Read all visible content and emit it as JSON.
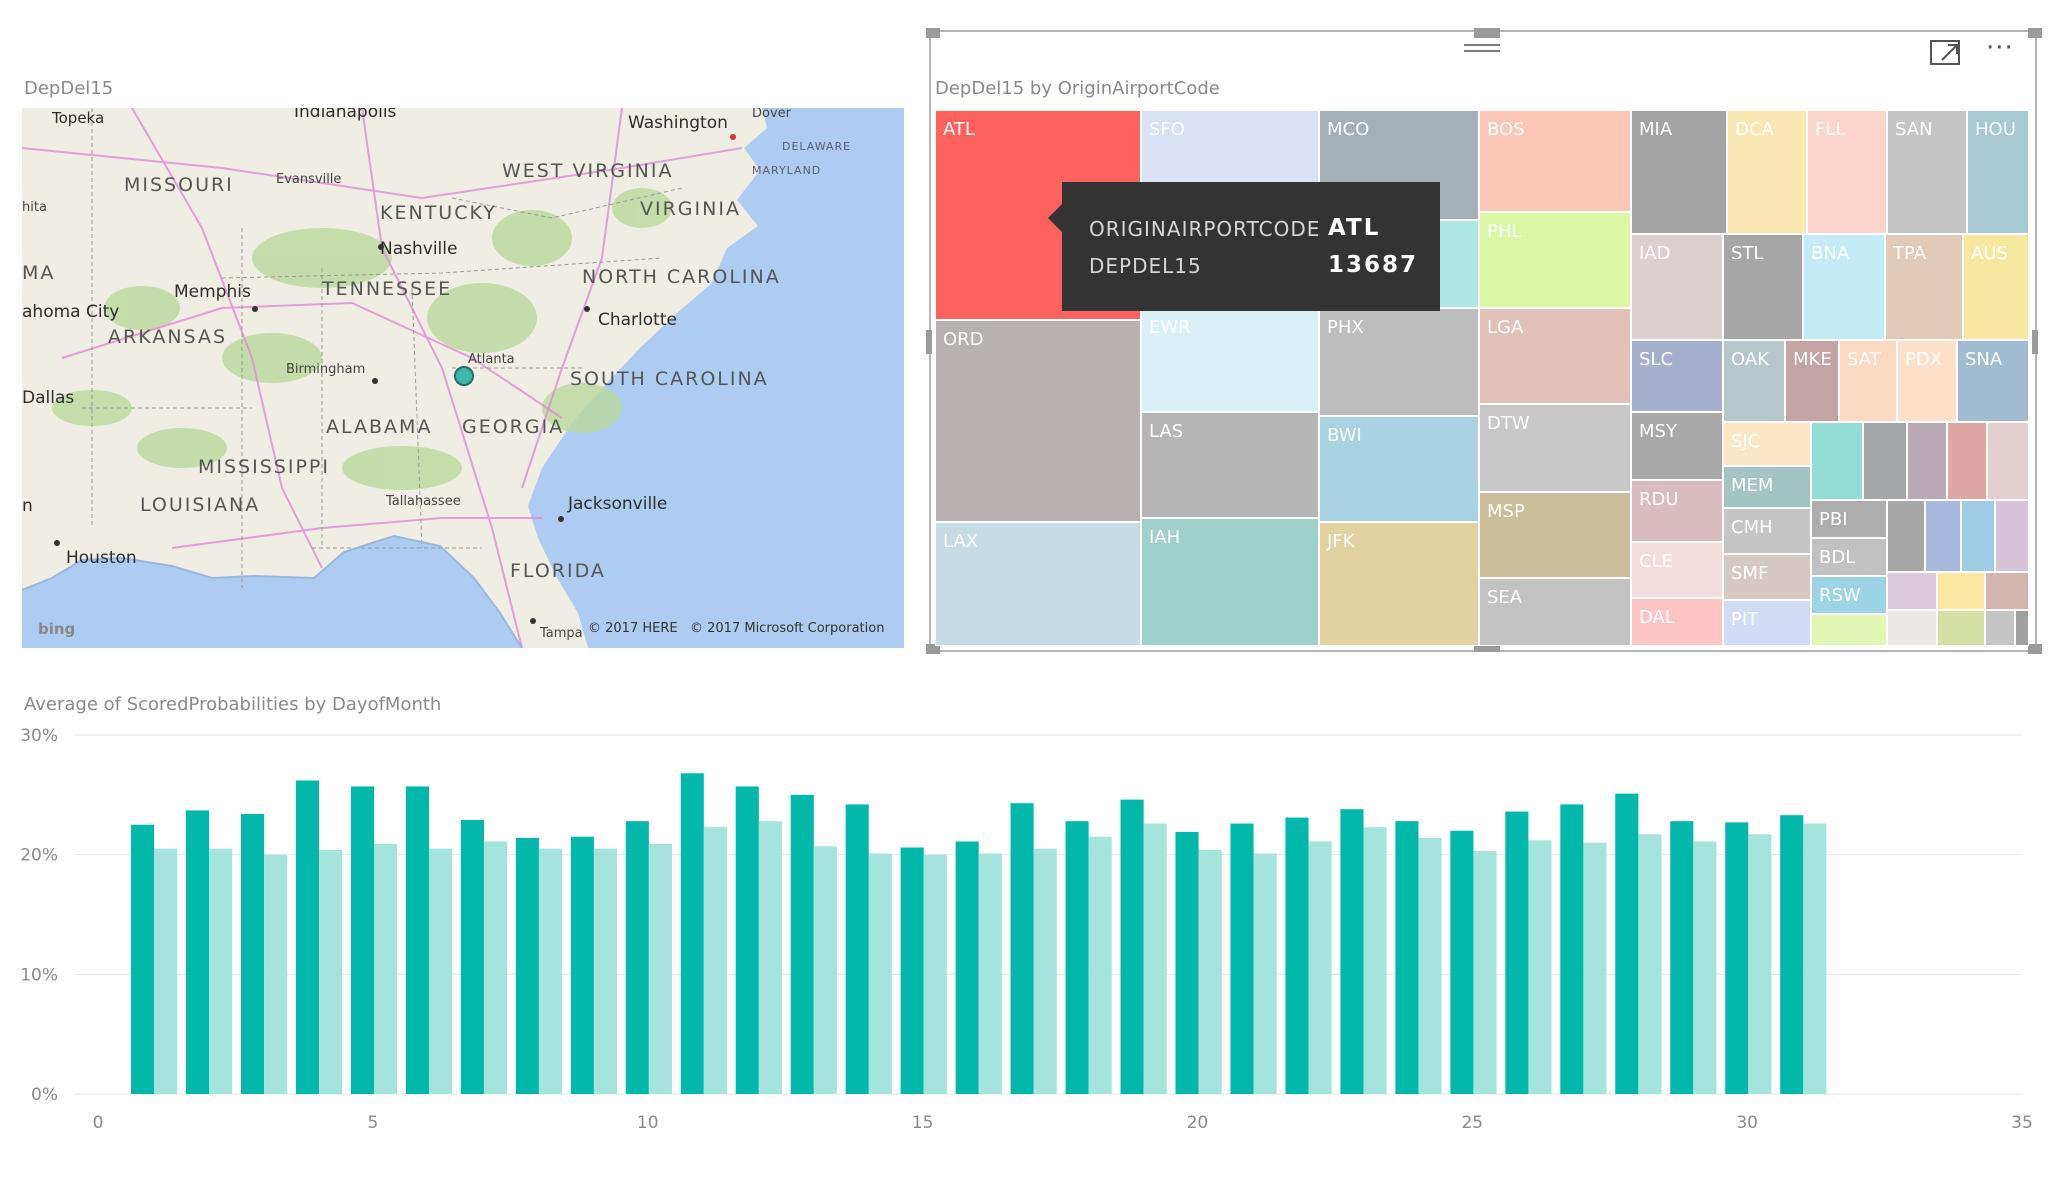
{
  "map_visual": {
    "title": "DepDel15",
    "states": [
      "MISSOURI",
      "KENTUCKY",
      "WEST VIRGINIA",
      "VIRGINIA",
      "TENNESSEE",
      "NORTH CAROLINA",
      "ARKANSAS",
      "SOUTH CAROLINA",
      "ALABAMA",
      "GEORGIA",
      "MISSISSIPPI",
      "LOUISIANA",
      "FLORIDA",
      "MA"
    ],
    "cities": [
      "Topeka",
      "Indianapolis",
      "Washington",
      "Dover",
      "Evansville",
      "Nashville",
      "Memphis",
      "Charlotte",
      "Birmingham",
      "Atlanta",
      "Tallahassee",
      "Jacksonville",
      "Houston",
      "Tampa",
      "ahoma City",
      "Dallas",
      "hita",
      "n"
    ],
    "small_states": [
      "DELAWARE",
      "MARYLAND"
    ],
    "bing_label": "bing",
    "copyright": [
      "© 2017 HERE",
      "© 2017 Microsoft Corporation"
    ],
    "bubble_color": "#3eb8a8"
  },
  "treemap_visual": {
    "title": "DepDel15 by OriginAirportCode",
    "cells": [
      {
        "label": "ATL",
        "color": "#fd625e"
      },
      {
        "label": "ORD",
        "color": "#b8b1b1"
      },
      {
        "label": "LAX",
        "color": "#c6dbe3"
      },
      {
        "label": "SFO",
        "color": "#dbe1f5"
      },
      {
        "label": "",
        "color": "#c9c5c5"
      },
      {
        "label": "EWR",
        "color": "#d9f0f7"
      },
      {
        "label": "LAS",
        "color": "#b5b5b5"
      },
      {
        "label": "IAH",
        "color": "#9fd0c9"
      },
      {
        "label": "MCO",
        "color": "#a3b0b5"
      },
      {
        "label": "",
        "color": "#aee8e4"
      },
      {
        "label": "PHX",
        "color": "#bdbdbd"
      },
      {
        "label": "BWI",
        "color": "#a9d3e2"
      },
      {
        "label": "JFK",
        "color": "#e2d2a2"
      },
      {
        "label": "BOS",
        "color": "#fbc8b7"
      },
      {
        "label": "PHL",
        "color": "#dbf7a4"
      },
      {
        "label": "LGA",
        "color": "#e2c1b8"
      },
      {
        "label": "DTW",
        "color": "#c7c7c7"
      },
      {
        "label": "MSP",
        "color": "#cbbd99"
      },
      {
        "label": "SEA",
        "color": "#c2c2c2"
      },
      {
        "label": "MIA",
        "color": "#a4a4a4"
      },
      {
        "label": "DCA",
        "color": "#f9e8b4"
      },
      {
        "label": "FLL",
        "color": "#fcd4cc"
      },
      {
        "label": "SAN",
        "color": "#c5c5c5"
      },
      {
        "label": "HOU",
        "color": "#a7c9d3"
      },
      {
        "label": "IAD",
        "color": "#dccfcf"
      },
      {
        "label": "STL",
        "color": "#a6a6a6"
      },
      {
        "label": "BNA",
        "color": "#c3ebf6"
      },
      {
        "label": "TPA",
        "color": "#e0c9b7"
      },
      {
        "label": "AUS",
        "color": "#f7e8a1"
      },
      {
        "label": "SLC",
        "color": "#a5b0cf"
      },
      {
        "label": "OAK",
        "color": "#b6c7c9"
      },
      {
        "label": "MKE",
        "color": "#c3a4a4"
      },
      {
        "label": "SAT",
        "color": "#fbd9c2"
      },
      {
        "label": "PDX",
        "color": "#fde0c9"
      },
      {
        "label": "SNA",
        "color": "#a1bcd1"
      },
      {
        "label": "MSY",
        "color": "#a8a8a8"
      },
      {
        "label": "RDU",
        "color": "#d8bcbf"
      },
      {
        "label": "CLE",
        "color": "#f3dcdc"
      },
      {
        "label": "DAL",
        "color": "#fec4c4"
      },
      {
        "label": "SJC",
        "color": "#fbe7c6"
      },
      {
        "label": "MEM",
        "color": "#a3c4c0"
      },
      {
        "label": "CMH",
        "color": "#c5c5c5"
      },
      {
        "label": "SMF",
        "color": "#d6c8c2"
      },
      {
        "label": "PIT",
        "color": "#d0dcf4"
      },
      {
        "label": "",
        "color": "#94ddd4"
      },
      {
        "label": "",
        "color": "#a3a7a7"
      },
      {
        "label": "",
        "color": "#b9a9b4"
      },
      {
        "label": "",
        "color": "#e0a5a5"
      },
      {
        "label": "",
        "color": "#e3cfd0"
      },
      {
        "label": "PBI",
        "color": "#adadad"
      },
      {
        "label": "BDL",
        "color": "#c1c1c1"
      },
      {
        "label": "RSW",
        "color": "#9cd4e6"
      },
      {
        "label": "",
        "color": "#e1f5b5"
      },
      {
        "label": "",
        "color": "#a7a7a7"
      },
      {
        "label": "",
        "color": "#a9b8df"
      },
      {
        "label": "",
        "color": "#9fcbe6"
      },
      {
        "label": "",
        "color": "#d7c4d8"
      },
      {
        "label": "",
        "color": "#ddc9dc"
      },
      {
        "label": "",
        "color": "#fbe9a2"
      },
      {
        "label": "",
        "color": "#d2b6ae"
      },
      {
        "label": "",
        "color": "#ece8e6"
      },
      {
        "label": "",
        "color": "#d4e0a6"
      },
      {
        "label": "",
        "color": "#c5c5c5"
      },
      {
        "label": "",
        "color": "#a0a0a0"
      }
    ],
    "tooltip": {
      "key1": "ORIGINAIRPORTCODE",
      "val1": "ATL",
      "key2": "DEPDEL15",
      "val2": "13687"
    }
  },
  "chart_data": {
    "type": "bar",
    "title": "Average of ScoredProbabilities by DayofMonth",
    "xlabel": "",
    "ylabel": "",
    "x_ticks": [
      0,
      5,
      10,
      15,
      20,
      25,
      30,
      35
    ],
    "y_ticks": [
      "0%",
      "10%",
      "20%",
      "30%"
    ],
    "xlim": [
      0,
      35
    ],
    "ylim": [
      0,
      30
    ],
    "grid": true,
    "x": [
      1,
      2,
      3,
      4,
      5,
      6,
      7,
      8,
      9,
      10,
      11,
      12,
      13,
      14,
      15,
      16,
      17,
      18,
      19,
      20,
      21,
      22,
      23,
      24,
      25,
      26,
      27,
      28,
      29,
      30,
      31
    ],
    "series": [
      {
        "color": "#01b8aa",
        "values": [
          22.5,
          23.7,
          23.4,
          26.2,
          25.7,
          25.7,
          22.9,
          21.4,
          21.5,
          22.8,
          26.8,
          25.7,
          25.0,
          24.2,
          20.6,
          21.1,
          24.3,
          22.8,
          24.6,
          21.9,
          22.6,
          23.1,
          23.8,
          22.8,
          22.0,
          23.6,
          24.2,
          25.1,
          22.8,
          22.7,
          23.3
        ]
      },
      {
        "color": "#a5e3dd",
        "values": [
          20.5,
          20.5,
          20.0,
          20.4,
          20.9,
          20.5,
          21.1,
          20.5,
          20.5,
          20.9,
          22.3,
          22.8,
          20.7,
          20.1,
          20.0,
          20.1,
          20.5,
          21.5,
          22.6,
          20.4,
          20.1,
          21.1,
          22.3,
          21.4,
          20.3,
          21.2,
          21.0,
          21.7,
          21.1,
          21.7,
          22.6
        ]
      }
    ]
  }
}
